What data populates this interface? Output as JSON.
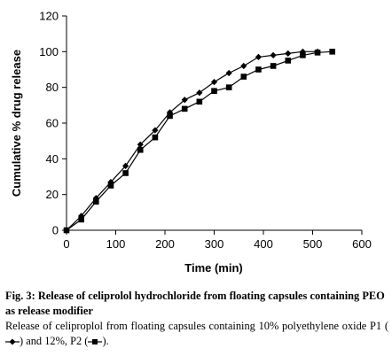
{
  "chart_data": {
    "type": "line",
    "xlabel": "Time (min)",
    "ylabel": "Cumulative % drug release",
    "xlim": [
      0,
      600
    ],
    "ylim": [
      0,
      120
    ],
    "xticks": [
      0,
      100,
      200,
      300,
      400,
      500,
      600
    ],
    "yticks": [
      0,
      20,
      40,
      60,
      80,
      100,
      120
    ],
    "grid": false,
    "legend": "none",
    "series": [
      {
        "marker": "diamond",
        "x": [
          0,
          30,
          60,
          90,
          120,
          150,
          180,
          210,
          240,
          270,
          300,
          330,
          360,
          390,
          420,
          450,
          480,
          510
        ],
        "y": [
          0,
          8,
          18,
          27,
          36,
          48,
          56,
          66,
          73,
          77,
          83,
          88,
          92,
          97,
          98,
          99,
          100,
          100
        ]
      },
      {
        "marker": "square",
        "x": [
          0,
          30,
          60,
          90,
          120,
          150,
          180,
          210,
          240,
          270,
          300,
          330,
          360,
          390,
          420,
          450,
          480,
          510,
          540
        ],
        "y": [
          0,
          6,
          16,
          25,
          32,
          45,
          52,
          64,
          68,
          72,
          78,
          80,
          86,
          90,
          92,
          95,
          98,
          99.5,
          100
        ]
      }
    ]
  },
  "caption": {
    "fig_label": "Fig. 3: Release of celiprolol hydrochloride from floating capsules containing PEO as release modifier",
    "body_1": "Release of celiproplol from floating capsules containing 10% polyethylene oxide P1 (",
    "body_2": ") and 12%, P2 (",
    "body_3": ")."
  }
}
